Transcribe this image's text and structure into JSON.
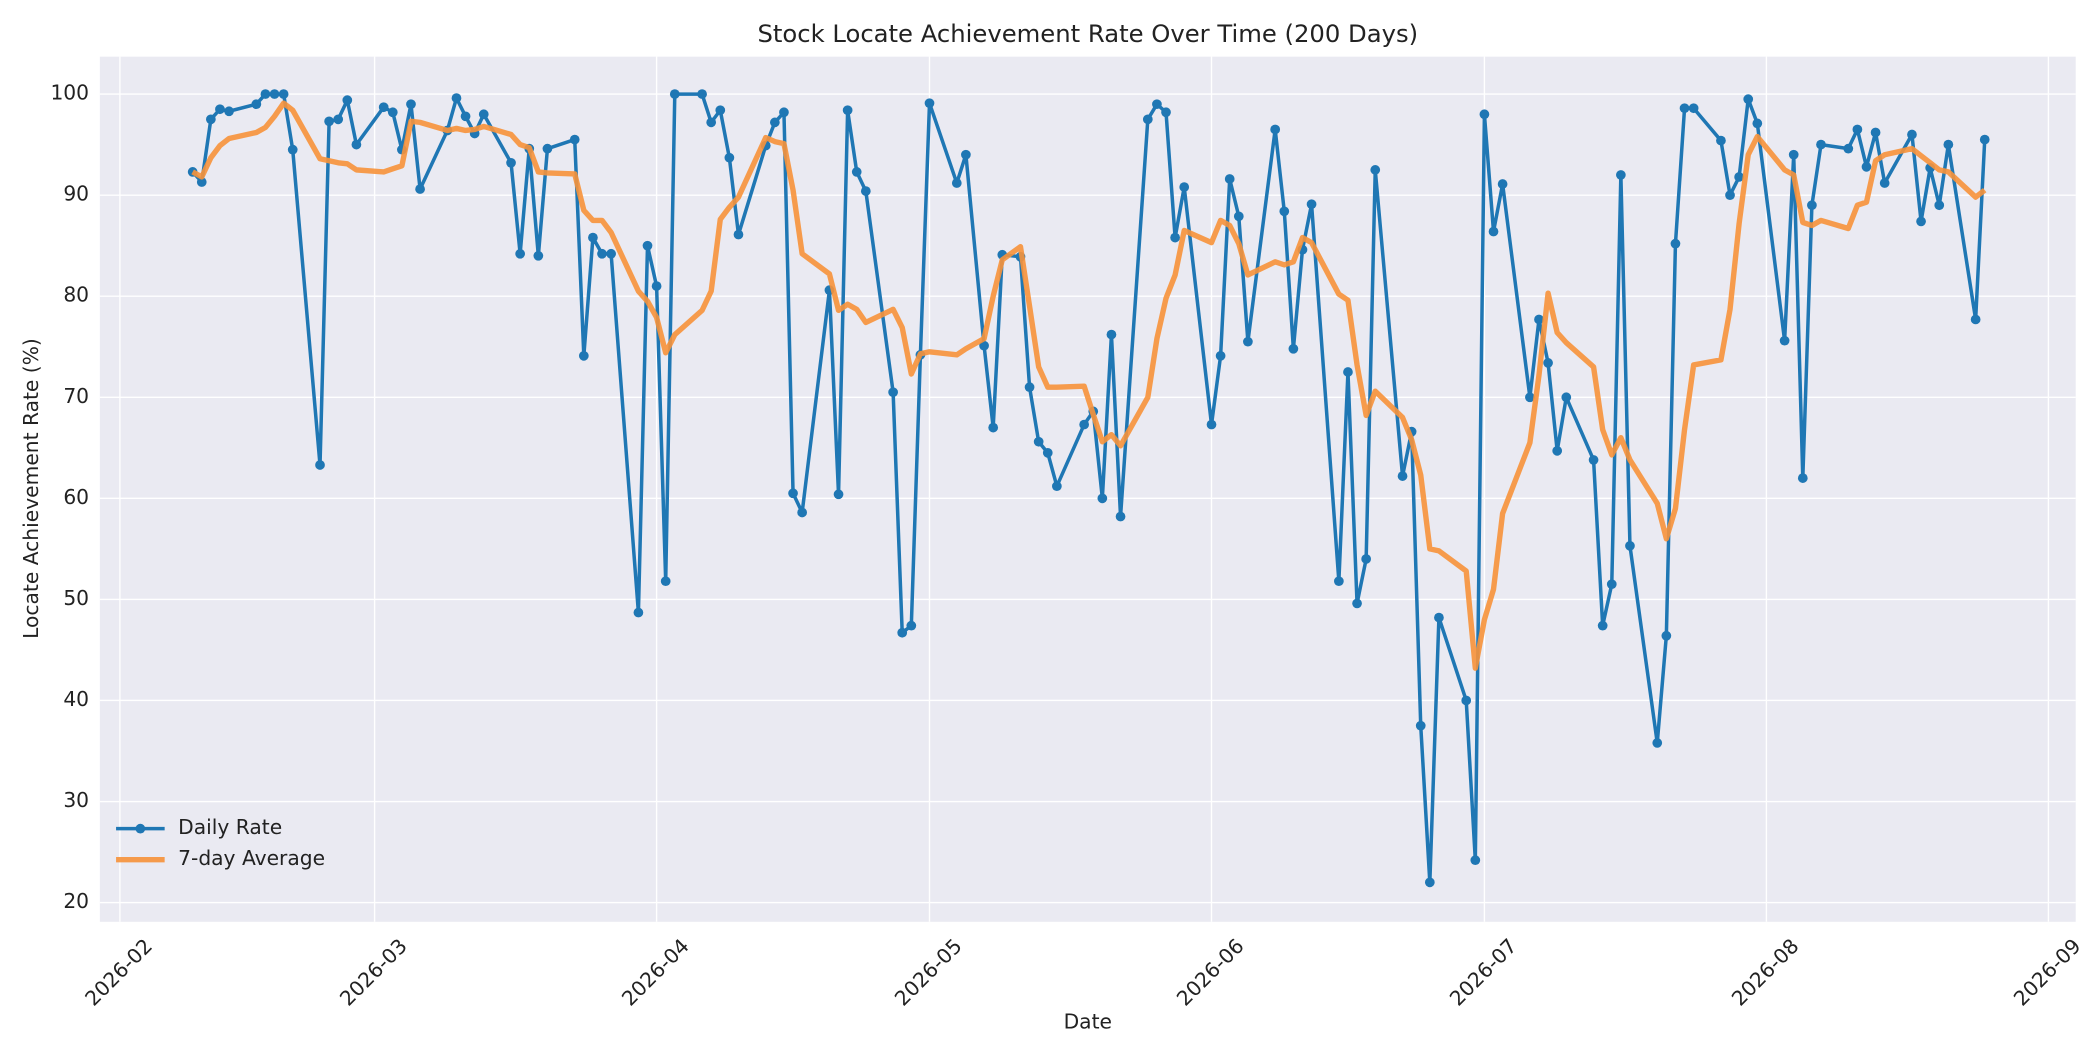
{
  "chart_data": {
    "type": "line",
    "title": "Stock Locate Achievement Rate Over Time (200 Days)",
    "xlabel": "Date",
    "ylabel": "Locate Achievement Rate (%)",
    "x": [
      8,
      9,
      10,
      11,
      12,
      15,
      16,
      17,
      18,
      19,
      22,
      23,
      24,
      25,
      26,
      29,
      30,
      31,
      32,
      33,
      36,
      37,
      38,
      39,
      40,
      43,
      44,
      45,
      46,
      47,
      50,
      51,
      52,
      53,
      54,
      57,
      58,
      59,
      60,
      61,
      64,
      65,
      66,
      67,
      68,
      71,
      72,
      73,
      74,
      75,
      78,
      79,
      80,
      81,
      82,
      85,
      86,
      87,
      88,
      89,
      92,
      93,
      95,
      96,
      97,
      99,
      100,
      101,
      102,
      103,
      106,
      107,
      108,
      109,
      110,
      113,
      114,
      115,
      116,
      117,
      120,
      121,
      122,
      123,
      124,
      127,
      128,
      129,
      130,
      131,
      134,
      135,
      136,
      137,
      138,
      141,
      142,
      143,
      144,
      145,
      148,
      149,
      150,
      151,
      152,
      155,
      156,
      157,
      158,
      159,
      162,
      163,
      164,
      165,
      166,
      169,
      170,
      171,
      172,
      173,
      176,
      177,
      178,
      179,
      180,
      183,
      184,
      185,
      186,
      187,
      190,
      191,
      192,
      193,
      194,
      197,
      198,
      199,
      200,
      201,
      204,
      205
    ],
    "series": [
      {
        "name": "Daily Rate",
        "color": "#1f77b4",
        "markers": true,
        "values": [
          92.3,
          91.3,
          97.5,
          98.5,
          98.3,
          99.0,
          100,
          100,
          100,
          94.5,
          63.3,
          97.3,
          97.5,
          99.4,
          95,
          98.7,
          98.2,
          94.5,
          99,
          90.6,
          96.4,
          99.6,
          97.8,
          96.1,
          98,
          93.2,
          84.2,
          94.6,
          84,
          94.6,
          95.5,
          74.1,
          85.8,
          84.2,
          84.2,
          48.7,
          85,
          81,
          51.8,
          100,
          100,
          97.2,
          98.4,
          93.7,
          86.1,
          94.9,
          97.2,
          98.2,
          60.5,
          58.6,
          80.6,
          60.4,
          98.4,
          92.3,
          90.4,
          70.5,
          46.7,
          47.4,
          74.2,
          99.1,
          91.2,
          94,
          75.1,
          67,
          84.1,
          83.9,
          71,
          65.6,
          64.5,
          61.2,
          67.3,
          68.6,
          60,
          76.2,
          58.2,
          97.5,
          99,
          98.2,
          85.8,
          90.8,
          67.3,
          74.1,
          91.6,
          87.9,
          75.5,
          96.5,
          88.4,
          74.8,
          84.6,
          89.1,
          51.8,
          72.5,
          49.6,
          54,
          92.5,
          62.2,
          66.6,
          37.5,
          22,
          48.2,
          40,
          24.2,
          98,
          86.4,
          91.1,
          70,
          77.7,
          73.4,
          64.7,
          70,
          63.8,
          47.4,
          51.5,
          92,
          55.3,
          35.8,
          46.4,
          85.2,
          98.6,
          98.6,
          95.4,
          90,
          91.8,
          99.5,
          97.1,
          75.6,
          94,
          62,
          89,
          95,
          94.6,
          96.5,
          92.8,
          96.2,
          91.2,
          96,
          87.4,
          92.7,
          89,
          95,
          77.7,
          95.5
        ]
      },
      {
        "name": "7-day Average",
        "color": "#f7923a",
        "markers": false,
        "values": [
          92.3,
          91.8,
          93.7,
          94.9,
          95.6,
          96.2,
          96.7,
          97.8,
          99.1,
          98.4,
          93.6,
          93.4,
          93.2,
          93.1,
          92.5,
          92.3,
          92.6,
          92.9,
          97.3,
          97.2,
          96.4,
          96.6,
          96.4,
          96.5,
          96.8,
          96.0,
          95.0,
          94.7,
          92.3,
          92.2,
          92.1,
          88.5,
          87.5,
          87.5,
          86.3,
          80.5,
          79.5,
          77.9,
          74.4,
          76.2,
          78.6,
          80.5,
          87.6,
          88.8,
          89.8,
          95.7,
          95.3,
          95.1,
          90.5,
          84.2,
          82.2,
          78.6,
          79.2,
          78.7,
          77.4,
          78.7,
          76.9,
          72.3,
          74.3,
          74.5,
          74.2,
          74.8,
          75.8,
          80,
          83.6,
          84.9,
          79,
          73,
          71,
          71,
          71.1,
          68.3,
          65.6,
          66.3,
          65.2,
          70,
          75.8,
          79.8,
          82.1,
          86.5,
          85.3,
          87.5,
          87,
          85.2,
          82.1,
          83.4,
          83.1,
          83.4,
          85.8,
          85.3,
          80.2,
          79.6,
          73.2,
          68.2,
          70.6,
          68,
          65.8,
          62.3,
          55,
          54.8,
          52.8,
          43.2,
          48,
          51,
          58.5,
          65.5,
          72.2,
          80.3,
          76.4,
          75.4,
          73,
          66.8,
          64.3,
          66,
          63.8,
          59.5,
          56,
          59,
          66.8,
          73.2,
          73.7,
          78.7,
          87.2,
          94,
          95.8,
          92.5,
          92,
          87.3,
          87,
          87.5,
          86.7,
          89,
          89.3,
          93.4,
          94,
          94.6,
          93.9,
          93.2,
          92.5,
          92.3,
          89.8,
          90.5
        ]
      }
    ],
    "xlim": [
      -2.2,
      215
    ],
    "xticks": [
      {
        "value": 0,
        "label": "2026-02"
      },
      {
        "value": 28,
        "label": "2026-03"
      },
      {
        "value": 59,
        "label": "2026-04"
      },
      {
        "value": 89,
        "label": "2026-05"
      },
      {
        "value": 120,
        "label": "2026-06"
      },
      {
        "value": 150,
        "label": "2026-07"
      },
      {
        "value": 181,
        "label": "2026-08"
      },
      {
        "value": 212,
        "label": "2026-09"
      }
    ],
    "ylim": [
      18.1,
      103.7
    ],
    "yticks": [
      20,
      30,
      40,
      50,
      60,
      70,
      80,
      90,
      100
    ],
    "grid": true,
    "legend": "lower left"
  }
}
